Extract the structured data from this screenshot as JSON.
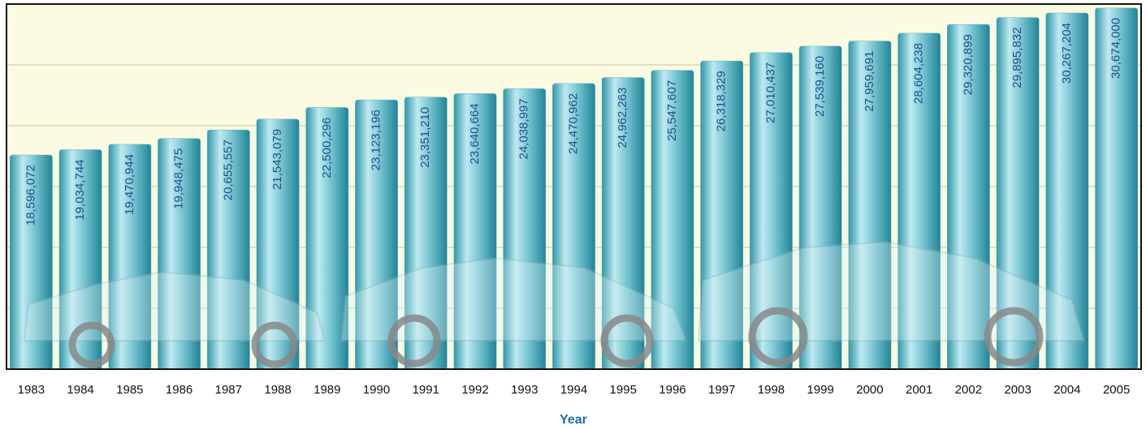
{
  "chart_data": {
    "type": "bar",
    "x_label": "Year",
    "categories": [
      "1983",
      "1984",
      "1985",
      "1986",
      "1987",
      "1988",
      "1989",
      "1990",
      "1991",
      "1992",
      "1993",
      "1994",
      "1995",
      "1996",
      "1997",
      "1998",
      "1999",
      "2000",
      "2001",
      "2002",
      "2003",
      "2004",
      "2005"
    ],
    "values": [
      18596072,
      19034744,
      19470944,
      19948475,
      20655557,
      21543079,
      22500296,
      23123196,
      23351210,
      23640664,
      24038997,
      24470962,
      24962263,
      25547607,
      26318329,
      27010437,
      27539160,
      27959691,
      28604238,
      29320899,
      29895832,
      30267204,
      30674000
    ],
    "value_labels": [
      "18,596,072",
      "19,034,744",
      "19,470,944",
      "19,948,475",
      "20,655,557",
      "21,543,079",
      "22,500,296",
      "23,123,196",
      "23,351,210",
      "23,640,664",
      "24,038,997",
      "24,470,962",
      "24,962,263",
      "25,547,607",
      "26,318,329",
      "27,010,437",
      "27,539,160",
      "27,959,691",
      "28,604,238",
      "29,320,899",
      "29,895,832",
      "30,267,204",
      "30,674,000"
    ],
    "color": "#4fb3c4",
    "ylim": [
      1000000,
      31000000
    ],
    "yticks": [
      6000000,
      11000000,
      16000000,
      21000000,
      26000000
    ],
    "grid": true
  }
}
